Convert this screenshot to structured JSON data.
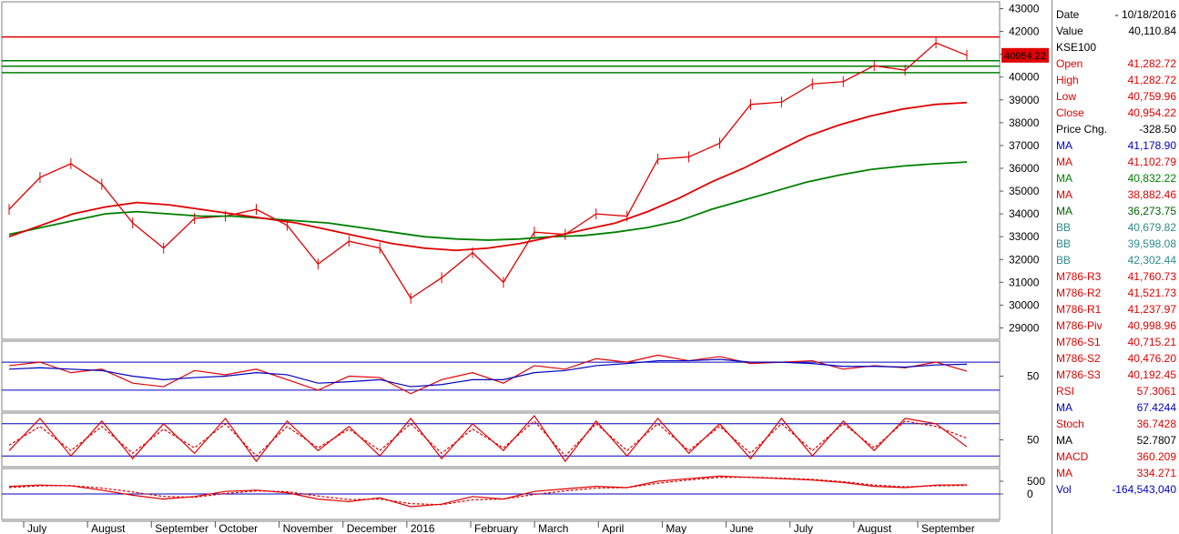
{
  "chart_data": [
    {
      "type": "line",
      "title": "KSE100",
      "x_labels": [
        "July",
        "August",
        "September",
        "October",
        "November",
        "December",
        "2016",
        "February",
        "March",
        "April",
        "May",
        "June",
        "July",
        "August",
        "September"
      ],
      "ylim": [
        28500,
        43300
      ],
      "yticks": [
        29000,
        30000,
        31000,
        32000,
        33000,
        34000,
        35000,
        36000,
        37000,
        38000,
        39000,
        40000,
        41000,
        42000,
        43000
      ],
      "last_price_label": "40954.22",
      "horizontal_lines": [
        {
          "color": "#e00000",
          "value": 41760.73
        },
        {
          "color": "#008000",
          "value": 40715.21
        },
        {
          "color": "#008000",
          "value": 40476.2
        },
        {
          "color": "#008000",
          "value": 40192.45
        }
      ],
      "series": [
        {
          "name": "Close",
          "color": "#e00000",
          "values": [
            34200,
            35600,
            36200,
            35300,
            33600,
            32500,
            33800,
            33900,
            34200,
            33500,
            31800,
            32800,
            32500,
            30300,
            31200,
            32300,
            31000,
            33200,
            33100,
            34000,
            33900,
            36400,
            36500,
            37100,
            38800,
            38900,
            39700,
            39800,
            40500,
            40300,
            41500,
            40954
          ]
        },
        {
          "name": "MA",
          "color": "#008000",
          "values": [
            33100,
            33400,
            33700,
            34000,
            34100,
            34000,
            33900,
            33900,
            33800,
            33700,
            33600,
            33400,
            33200,
            33000,
            32900,
            32850,
            32900,
            33000,
            33050,
            33200,
            33400,
            33700,
            34200,
            34600,
            35000,
            35400,
            35700,
            35950,
            36100,
            36200,
            36273
          ]
        },
        {
          "name": "MA",
          "color": "#e00000",
          "values": [
            33000,
            33500,
            34000,
            34300,
            34500,
            34400,
            34200,
            34000,
            33800,
            33600,
            33300,
            33000,
            32700,
            32500,
            32400,
            32500,
            32700,
            33000,
            33300,
            33600,
            34100,
            34700,
            35400,
            36000,
            36700,
            37400,
            37900,
            38300,
            38600,
            38800,
            38882
          ]
        }
      ]
    },
    {
      "type": "line",
      "title": "RSI",
      "ylim": [
        0,
        100
      ],
      "yticks": [
        50
      ],
      "guide_lines": [
        70,
        30
      ],
      "series": [
        {
          "name": "RSI",
          "color": "#e00000",
          "values": [
            65,
            70,
            55,
            60,
            40,
            35,
            58,
            52,
            60,
            45,
            30,
            50,
            48,
            25,
            45,
            55,
            40,
            65,
            60,
            75,
            70,
            80,
            72,
            78,
            68,
            70,
            72,
            60,
            65,
            62,
            70,
            57
          ]
        },
        {
          "name": "MA",
          "color": "#0000c0",
          "values": [
            60,
            62,
            60,
            58,
            50,
            45,
            48,
            50,
            55,
            52,
            40,
            42,
            45,
            35,
            38,
            45,
            45,
            55,
            58,
            65,
            68,
            72,
            72,
            74,
            70,
            70,
            68,
            64,
            64,
            63,
            66,
            67
          ]
        }
      ]
    },
    {
      "type": "line",
      "title": "Stoch",
      "ylim": [
        0,
        100
      ],
      "yticks": [
        50
      ],
      "guide_lines": [
        80,
        20
      ],
      "series": [
        {
          "name": "Stoch",
          "color": "#e00000",
          "values": [
            30,
            90,
            20,
            85,
            15,
            80,
            25,
            90,
            10,
            85,
            30,
            75,
            20,
            90,
            15,
            80,
            30,
            95,
            10,
            85,
            20,
            90,
            25,
            80,
            15,
            90,
            20,
            85,
            30,
            90,
            80,
            37
          ]
        },
        {
          "name": "MA",
          "color": "#e00000",
          "values": [
            40,
            75,
            30,
            75,
            25,
            70,
            35,
            80,
            20,
            75,
            35,
            70,
            30,
            80,
            25,
            70,
            35,
            85,
            20,
            80,
            30,
            80,
            30,
            75,
            25,
            80,
            30,
            80,
            35,
            85,
            75,
            53
          ]
        }
      ]
    },
    {
      "type": "line",
      "title": "MACD",
      "ylim": [
        -1000,
        1000
      ],
      "yticks": [
        500,
        0
      ],
      "guide_lines": [
        0
      ],
      "series": [
        {
          "name": "MACD",
          "color": "#e00000",
          "values": [
            300,
            350,
            320,
            150,
            -50,
            -200,
            -100,
            100,
            150,
            50,
            -200,
            -300,
            -150,
            -500,
            -400,
            -100,
            -200,
            100,
            200,
            300,
            250,
            500,
            600,
            700,
            650,
            600,
            550,
            450,
            300,
            250,
            350,
            360
          ]
        },
        {
          "name": "MA",
          "color": "#e00000",
          "values": [
            250,
            320,
            330,
            230,
            80,
            -100,
            -130,
            20,
            120,
            90,
            -80,
            -220,
            -200,
            -380,
            -420,
            -230,
            -200,
            -20,
            120,
            230,
            250,
            420,
            550,
            650,
            660,
            620,
            570,
            480,
            350,
            280,
            320,
            334
          ]
        }
      ]
    }
  ],
  "data_window": [
    {
      "label": "Date",
      "value": "- 10/18/2016",
      "color": "#000000"
    },
    {
      "label": "Value",
      "value": "40,110.84",
      "color": "#000000"
    },
    {
      "label": "KSE100",
      "value": "",
      "color": "#000000"
    },
    {
      "label": "Open",
      "value": "41,282.72",
      "color": "#e00000"
    },
    {
      "label": "High",
      "value": "41,282.72",
      "color": "#e00000"
    },
    {
      "label": "Low",
      "value": "40,759.96",
      "color": "#e00000"
    },
    {
      "label": "Close",
      "value": "40,954.22",
      "color": "#e00000"
    },
    {
      "label": "Price Chg.",
      "value": "-328.50",
      "color": "#000000"
    },
    {
      "label": "MA",
      "value": "41,178.90",
      "color": "#0000c0"
    },
    {
      "label": "MA",
      "value": "41,102.79",
      "color": "#e00000"
    },
    {
      "label": "MA",
      "value": "40,832.22",
      "color": "#008000"
    },
    {
      "label": "MA",
      "value": "38,882.46",
      "color": "#e00000"
    },
    {
      "label": "MA",
      "value": "36,273.75",
      "color": "#006000"
    },
    {
      "label": "BB",
      "value": "40,679.82",
      "color": "#2e8b8b"
    },
    {
      "label": "BB",
      "value": "39,598.08",
      "color": "#2e8b8b"
    },
    {
      "label": "BB",
      "value": "42,302.44",
      "color": "#2e8b8b"
    },
    {
      "label": "M786-R3",
      "value": "41,760.73",
      "color": "#e00000"
    },
    {
      "label": "M786-R2",
      "value": "41,521.73",
      "color": "#e00000"
    },
    {
      "label": "M786-R1",
      "value": "41,237.97",
      "color": "#e00000"
    },
    {
      "label": "M786-Piv",
      "value": "40,998.96",
      "color": "#e00000"
    },
    {
      "label": "M786-S1",
      "value": "40,715.21",
      "color": "#e00000"
    },
    {
      "label": "M786-S2",
      "value": "40,476.20",
      "color": "#e00000"
    },
    {
      "label": "M786-S3",
      "value": "40,192.45",
      "color": "#e00000"
    },
    {
      "label": "RSI",
      "value": "57.3061",
      "color": "#e00000"
    },
    {
      "label": "MA",
      "value": "67.4244",
      "color": "#0000c0"
    },
    {
      "label": "Stoch",
      "value": "36.7428",
      "color": "#e00000"
    },
    {
      "label": "MA",
      "value": "52.7807",
      "color": "#000000"
    },
    {
      "label": "MACD",
      "value": "360.209",
      "color": "#e00000"
    },
    {
      "label": "MA",
      "value": "334.271",
      "color": "#e00000"
    },
    {
      "label": "Vol",
      "value": "-164,543,040",
      "color": "#0000c0"
    }
  ]
}
